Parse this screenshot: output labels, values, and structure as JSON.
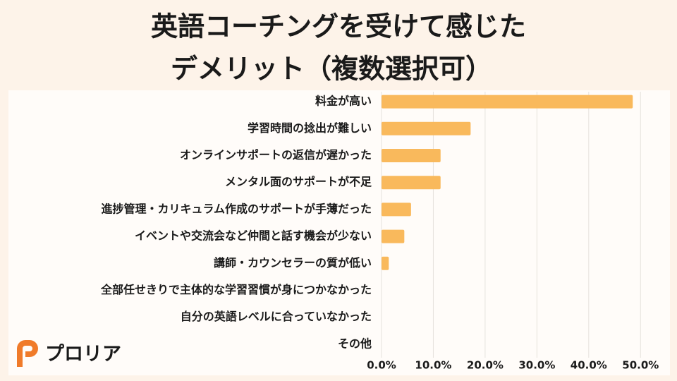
{
  "brand": "プロリア",
  "chart_data": {
    "type": "hbar",
    "title": [
      "英語コーチングを受けて感じた",
      "デメリット（複数選択可）"
    ],
    "categories": [
      "料金が高い",
      "学習時間の捻出が難しい",
      "オンラインサポートの返信が遅かった",
      "メンタル面のサポートが不足",
      "進捗管理・カリキュラム作成のサポートが手薄だった",
      "イベントや交流会など仲間と話す機会が少ない",
      "講師・カウンセラーの質が低い",
      "全部任せきりで主体的な学習習慣が身につかなかった",
      "自分の英語レベルに合っていなかった",
      "その他"
    ],
    "values": [
      48.5,
      17.2,
      11.4,
      11.4,
      5.7,
      4.4,
      1.4,
      0,
      0,
      0
    ],
    "color": "#f9b95c",
    "xlim": [
      0,
      53.5
    ],
    "xticks": [
      {
        "value": 0,
        "label": "0.0%"
      },
      {
        "value": 10,
        "label": "10.0%"
      },
      {
        "value": 20,
        "label": "20.0%"
      },
      {
        "value": 30,
        "label": "30.0%"
      },
      {
        "value": 40,
        "label": "40.0%"
      },
      {
        "value": 50,
        "label": "50.0%"
      }
    ],
    "grid": true
  }
}
